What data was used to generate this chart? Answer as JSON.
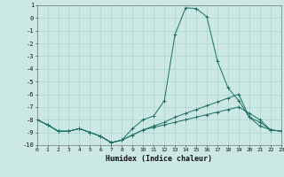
{
  "xlabel": "Humidex (Indice chaleur)",
  "bg_color": "#cce8e4",
  "grid_color": "#aad4d0",
  "line_color": "#1a6e62",
  "xlim": [
    0,
    23
  ],
  "ylim": [
    -10,
    1
  ],
  "x": [
    0,
    1,
    2,
    3,
    4,
    5,
    6,
    7,
    8,
    9,
    10,
    11,
    12,
    13,
    14,
    15,
    16,
    17,
    18,
    19,
    20,
    21,
    22,
    23
  ],
  "series": [
    [
      -8.0,
      -8.4,
      -8.9,
      -8.9,
      -8.7,
      -9.0,
      -9.3,
      -9.8,
      -9.6,
      -8.7,
      -8.0,
      -7.7,
      -6.5,
      -1.3,
      0.8,
      0.75,
      0.1,
      -3.4,
      -5.5,
      -6.5,
      -7.8,
      -8.5,
      -8.8,
      -8.9
    ],
    [
      -8.0,
      -8.4,
      -8.9,
      -8.9,
      -8.7,
      -9.0,
      -9.3,
      -9.8,
      -9.6,
      -9.2,
      -8.8,
      -8.6,
      -8.4,
      -8.2,
      -8.0,
      -7.8,
      -7.6,
      -7.4,
      -7.2,
      -7.0,
      -7.5,
      -8.0,
      -8.8,
      -8.9
    ],
    [
      -8.0,
      -8.4,
      -8.9,
      -8.9,
      -8.7,
      -9.0,
      -9.3,
      -9.8,
      -9.6,
      -9.2,
      -8.8,
      -8.5,
      -8.2,
      -7.8,
      -7.5,
      -7.2,
      -6.9,
      -6.6,
      -6.3,
      -6.0,
      -7.8,
      -8.2,
      -8.8,
      -8.9
    ]
  ]
}
